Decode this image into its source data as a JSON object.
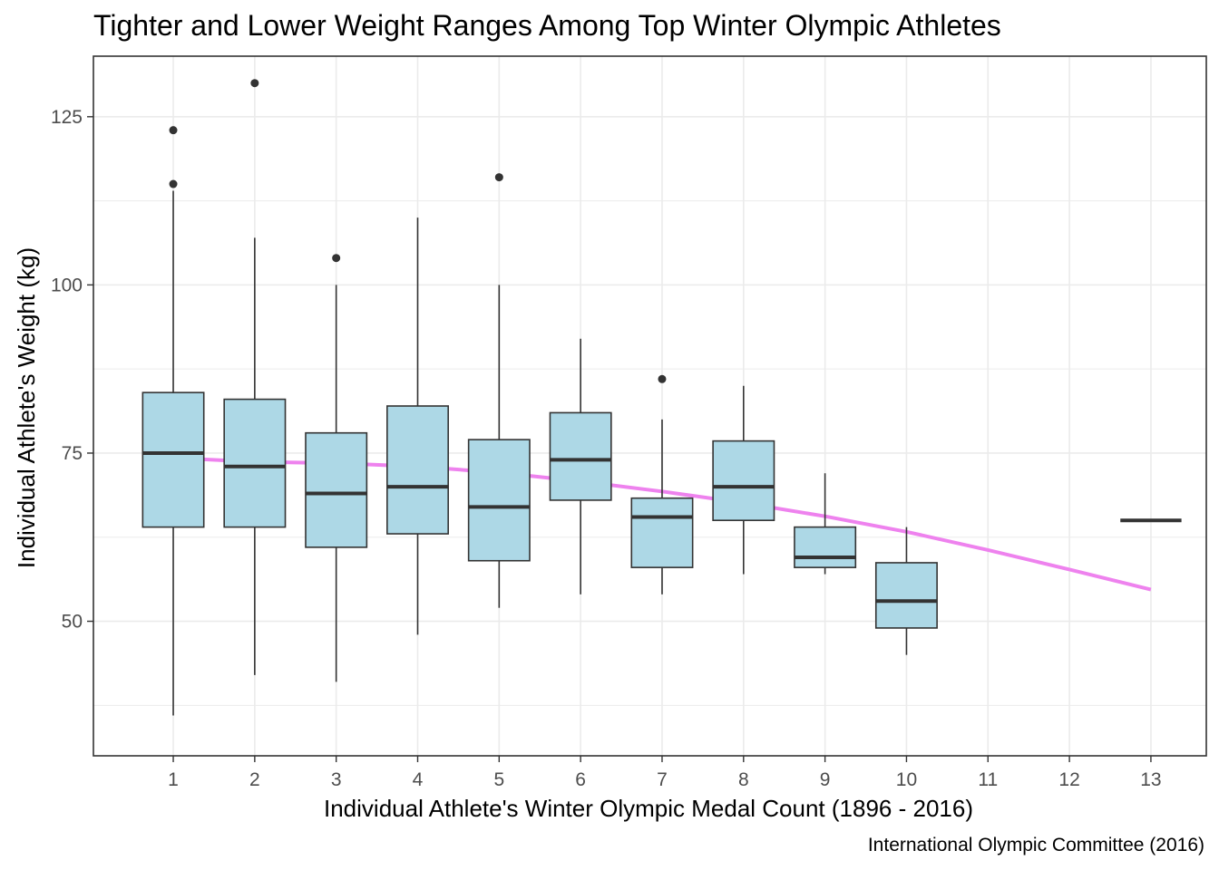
{
  "chart_data": {
    "type": "boxplot",
    "title": "Tighter and Lower Weight Ranges Among Top Winter Olympic Athletes",
    "caption": "International Olympic Committee (2016)",
    "xlabel": "Individual Athlete's Winter Olympic Medal Count (1896 - 2016)",
    "ylabel": "Individual Athlete's Weight (kg)",
    "x_ticks": [
      "1",
      "2",
      "3",
      "4",
      "5",
      "6",
      "7",
      "8",
      "9",
      "10",
      "11",
      "12",
      "13"
    ],
    "y_ticks": [
      50,
      75,
      100,
      125
    ],
    "xlim": [
      0.02,
      13.68
    ],
    "ylim": [
      30,
      134
    ],
    "grid": true,
    "boxes": [
      {
        "x": 1,
        "min": 36,
        "q1": 64,
        "median": 75,
        "q3": 84,
        "max": 114,
        "outliers": [
          115,
          123
        ]
      },
      {
        "x": 2,
        "min": 42,
        "q1": 64,
        "median": 73,
        "q3": 83,
        "max": 107,
        "outliers": [
          130
        ]
      },
      {
        "x": 3,
        "min": 41,
        "q1": 61,
        "median": 69,
        "q3": 78,
        "max": 100,
        "outliers": [
          104
        ]
      },
      {
        "x": 4,
        "min": 48,
        "q1": 63,
        "median": 70,
        "q3": 82,
        "max": 110,
        "outliers": []
      },
      {
        "x": 5,
        "min": 52,
        "q1": 59,
        "median": 67,
        "q3": 77,
        "max": 100,
        "outliers": [
          116
        ]
      },
      {
        "x": 6,
        "min": 54,
        "q1": 68,
        "median": 74,
        "q3": 81,
        "max": 92,
        "outliers": []
      },
      {
        "x": 7,
        "min": 54,
        "q1": 58,
        "median": 65.5,
        "q3": 68.3,
        "max": 80,
        "outliers": [
          86
        ]
      },
      {
        "x": 8,
        "min": 57,
        "q1": 65,
        "median": 70,
        "q3": 76.8,
        "max": 85,
        "outliers": []
      },
      {
        "x": 9,
        "min": 57,
        "q1": 58,
        "median": 59.5,
        "q3": 64,
        "max": 72,
        "outliers": []
      },
      {
        "x": 10,
        "min": 45,
        "q1": 49,
        "median": 53,
        "q3": 58.7,
        "max": 64,
        "outliers": []
      },
      {
        "x": 13,
        "min": 65,
        "q1": 65,
        "median": 65,
        "q3": 65,
        "max": 65,
        "outliers": []
      }
    ],
    "trend": {
      "x": [
        1,
        2,
        3,
        4,
        5,
        6,
        7,
        8,
        9,
        10,
        11,
        12,
        13
      ],
      "y": [
        74.3,
        73.7,
        73.5,
        73.0,
        72.1,
        70.8,
        69.3,
        67.6,
        65.6,
        63.3,
        60.6,
        57.7,
        54.7
      ]
    },
    "colors": {
      "box_fill": "#add8e6",
      "box_stroke": "#333333",
      "trend": "#ee82ee",
      "grid": "#ebebeb",
      "panel_border": "#333333",
      "tick_label": "#4d4d4d"
    }
  }
}
